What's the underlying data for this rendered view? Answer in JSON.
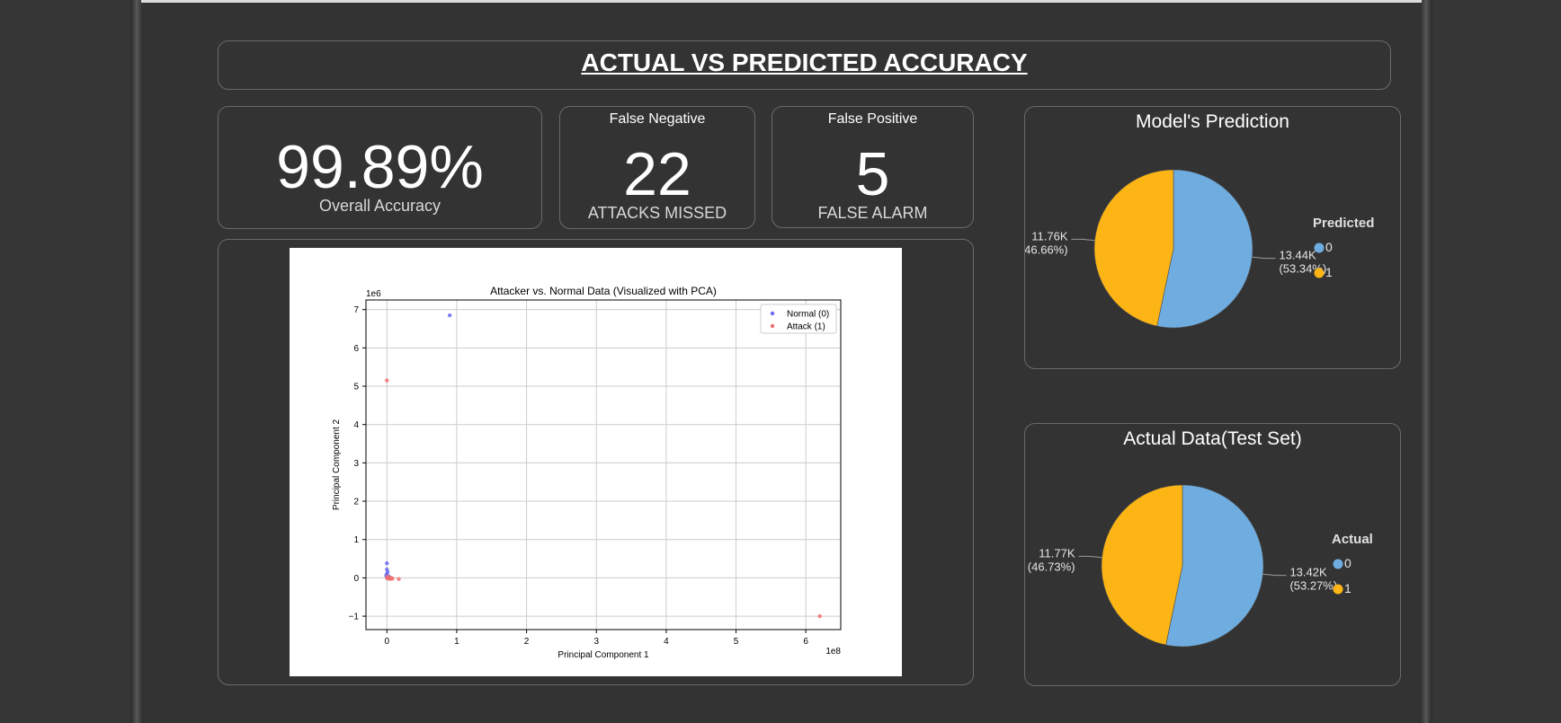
{
  "header": {
    "title": "ACTUAL VS PREDICTED ACCURACY"
  },
  "kpis": {
    "accuracy": {
      "value": "99.89%",
      "label": "Overall Accuracy"
    },
    "false_negative": {
      "title": "False Negative",
      "value": "22",
      "label": "ATTACKS MISSED"
    },
    "false_positive": {
      "title": "False Positive",
      "value": "5",
      "label": "FALSE ALARM"
    }
  },
  "colors": {
    "background": "#333333",
    "pie_class0": "#6fade0",
    "pie_class1": "#fdb515",
    "normal": "#6b6bf0",
    "attack": "#f07070"
  },
  "chart_data": [
    {
      "type": "scatter",
      "title": "Attacker vs. Normal Data (Visualized with PCA)",
      "xlabel": "Principal Component 1",
      "ylabel": "Principal Component 2",
      "x_scale_label": "1e8",
      "y_scale_label": "1e6",
      "xlim": [
        -0.3,
        6.5
      ],
      "ylim": [
        -1.35,
        7.25
      ],
      "xticks": [
        0,
        1,
        2,
        3,
        4,
        5,
        6
      ],
      "yticks": [
        -1,
        0,
        1,
        2,
        3,
        4,
        5,
        6,
        7
      ],
      "xtick_labels": [
        "0",
        "1",
        "2",
        "3",
        "4",
        "5",
        "6"
      ],
      "ytick_labels": [
        "−1",
        "0",
        "1",
        "2",
        "3",
        "4",
        "5",
        "6",
        "7"
      ],
      "grid": true,
      "legend_position": "top-right",
      "series": [
        {
          "name": "Normal (0)",
          "color": "#6b6bf0",
          "points": [
            [
              0.9,
              6.85
            ],
            [
              0.0,
              0.38
            ],
            [
              0.0,
              0.22
            ],
            [
              0.01,
              0.15
            ],
            [
              0.0,
              0.1
            ],
            [
              -0.01,
              0.06
            ],
            [
              0.02,
              0.04
            ],
            [
              0.0,
              0.02
            ],
            [
              0.03,
              0.0
            ],
            [
              0.01,
              -0.01
            ],
            [
              0.04,
              0.01
            ]
          ]
        },
        {
          "name": "Attack (1)",
          "color": "#f07070",
          "points": [
            [
              0.0,
              5.15
            ],
            [
              6.2,
              -1.0
            ],
            [
              0.17,
              -0.03
            ],
            [
              0.0,
              0.0
            ],
            [
              0.02,
              -0.02
            ],
            [
              0.05,
              -0.03
            ],
            [
              0.08,
              -0.02
            ],
            [
              0.01,
              0.03
            ],
            [
              0.03,
              -0.01
            ],
            [
              0.06,
              0.0
            ]
          ]
        }
      ]
    },
    {
      "type": "pie",
      "title": "Model's Prediction",
      "legend_title": "Predicted",
      "legend_position": "right",
      "slices": [
        {
          "label": "0",
          "value": 13440,
          "percent": 53.34,
          "display": "13.44K",
          "display_pct": "(53.34%)",
          "color": "#6fade0"
        },
        {
          "label": "1",
          "value": 11760,
          "percent": 46.66,
          "display": "11.76K",
          "display_pct": "(46.66%)",
          "color": "#fdb515"
        }
      ]
    },
    {
      "type": "pie",
      "title": "Actual Data(Test Set)",
      "legend_title": "Actual",
      "legend_position": "right",
      "slices": [
        {
          "label": "0",
          "value": 13420,
          "percent": 53.27,
          "display": "13.42K",
          "display_pct": "(53.27%)",
          "color": "#6fade0"
        },
        {
          "label": "1",
          "value": 11770,
          "percent": 46.73,
          "display": "11.77K",
          "display_pct": "(46.73%)",
          "color": "#fdb515"
        }
      ]
    }
  ]
}
